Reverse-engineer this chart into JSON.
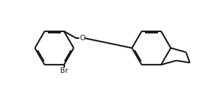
{
  "bg_color": "#ffffff",
  "line_color": "#1a1a1a",
  "line_width": 1.6,
  "figsize": [
    3.1,
    1.41
  ],
  "dpi": 100,
  "xlim": [
    0.0,
    10.0
  ],
  "ylim": [
    0.5,
    5.0
  ]
}
